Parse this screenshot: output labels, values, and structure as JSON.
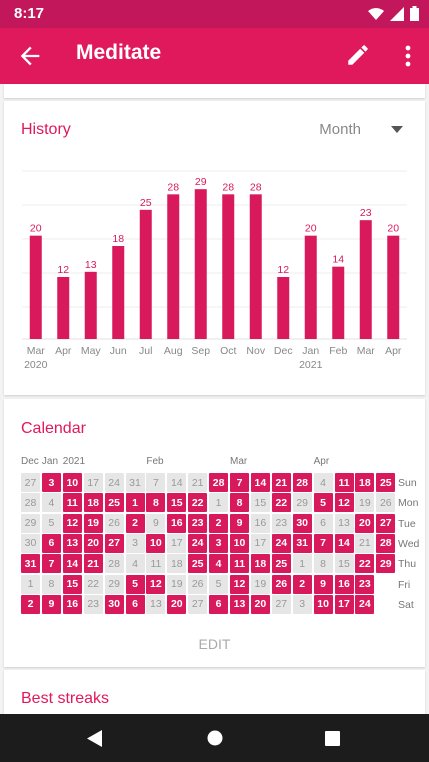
{
  "status": {
    "time": "8:17"
  },
  "app": {
    "title": "Meditate"
  },
  "history": {
    "title": "History",
    "period": "Month"
  },
  "chart_data": {
    "type": "bar",
    "categories": [
      "Mar\n2020",
      "Apr",
      "May",
      "Jun",
      "Jul",
      "Aug",
      "Sep",
      "Oct",
      "Nov",
      "Dec",
      "Jan\n2021",
      "Feb",
      "Mar",
      "Apr"
    ],
    "values": [
      20,
      12,
      13,
      18,
      25,
      28,
      29,
      28,
      28,
      12,
      20,
      14,
      23,
      20
    ],
    "ylim": [
      0,
      30
    ],
    "grid": true,
    "title": "",
    "xlabel": "",
    "ylabel": ""
  },
  "calendar": {
    "title": "Calendar",
    "month_labels": [
      {
        "col": 0,
        "text": "Dec"
      },
      {
        "col": 1,
        "text": "Jan"
      },
      {
        "col": 2,
        "text": "2021"
      },
      {
        "col": 6,
        "text": "Feb"
      },
      {
        "col": 10,
        "text": "Mar"
      },
      {
        "col": 14,
        "text": "Apr"
      }
    ],
    "weekdays": [
      "Sun",
      "Mon",
      "Tue",
      "Wed",
      "Thu",
      "Fri",
      "Sat"
    ],
    "columns": [
      [
        [
          27,
          0
        ],
        [
          28,
          0
        ],
        [
          29,
          0
        ],
        [
          30,
          0
        ],
        [
          31,
          1
        ],
        [
          1,
          0
        ],
        [
          2,
          1
        ]
      ],
      [
        [
          3,
          1
        ],
        [
          4,
          0
        ],
        [
          5,
          0
        ],
        [
          6,
          1
        ],
        [
          7,
          1
        ],
        [
          8,
          0
        ],
        [
          9,
          1
        ]
      ],
      [
        [
          10,
          1
        ],
        [
          11,
          1
        ],
        [
          12,
          1
        ],
        [
          13,
          1
        ],
        [
          14,
          1
        ],
        [
          15,
          1
        ],
        [
          16,
          1
        ]
      ],
      [
        [
          17,
          0
        ],
        [
          18,
          1
        ],
        [
          19,
          1
        ],
        [
          20,
          1
        ],
        [
          21,
          1
        ],
        [
          22,
          0
        ],
        [
          23,
          0
        ]
      ],
      [
        [
          24,
          0
        ],
        [
          25,
          1
        ],
        [
          26,
          0
        ],
        [
          27,
          1
        ],
        [
          28,
          0
        ],
        [
          29,
          0
        ],
        [
          30,
          1
        ]
      ],
      [
        [
          31,
          0
        ],
        [
          1,
          1
        ],
        [
          2,
          1
        ],
        [
          3,
          0
        ],
        [
          4,
          0
        ],
        [
          5,
          1
        ],
        [
          6,
          1
        ]
      ],
      [
        [
          7,
          0
        ],
        [
          8,
          1
        ],
        [
          9,
          0
        ],
        [
          10,
          1
        ],
        [
          11,
          0
        ],
        [
          12,
          1
        ],
        [
          13,
          0
        ]
      ],
      [
        [
          14,
          0
        ],
        [
          15,
          1
        ],
        [
          16,
          1
        ],
        [
          17,
          0
        ],
        [
          18,
          0
        ],
        [
          19,
          0
        ],
        [
          20,
          1
        ]
      ],
      [
        [
          21,
          0
        ],
        [
          22,
          1
        ],
        [
          23,
          1
        ],
        [
          24,
          1
        ],
        [
          25,
          1
        ],
        [
          26,
          0
        ],
        [
          27,
          0
        ]
      ],
      [
        [
          28,
          1
        ],
        [
          1,
          0
        ],
        [
          2,
          1
        ],
        [
          3,
          1
        ],
        [
          4,
          1
        ],
        [
          5,
          0
        ],
        [
          6,
          1
        ]
      ],
      [
        [
          7,
          1
        ],
        [
          8,
          1
        ],
        [
          9,
          1
        ],
        [
          10,
          1
        ],
        [
          11,
          1
        ],
        [
          12,
          1
        ],
        [
          13,
          1
        ]
      ],
      [
        [
          14,
          1
        ],
        [
          15,
          0
        ],
        [
          16,
          0
        ],
        [
          17,
          0
        ],
        [
          18,
          1
        ],
        [
          19,
          0
        ],
        [
          20,
          1
        ]
      ],
      [
        [
          21,
          1
        ],
        [
          22,
          1
        ],
        [
          23,
          0
        ],
        [
          24,
          1
        ],
        [
          25,
          1
        ],
        [
          26,
          1
        ],
        [
          27,
          0
        ]
      ],
      [
        [
          28,
          1
        ],
        [
          29,
          0
        ],
        [
          30,
          1
        ],
        [
          31,
          1
        ],
        [
          1,
          0
        ],
        [
          2,
          1
        ],
        [
          3,
          0
        ]
      ],
      [
        [
          4,
          0
        ],
        [
          5,
          1
        ],
        [
          6,
          0
        ],
        [
          7,
          1
        ],
        [
          8,
          0
        ],
        [
          9,
          1
        ],
        [
          10,
          1
        ]
      ],
      [
        [
          11,
          1
        ],
        [
          12,
          1
        ],
        [
          13,
          0
        ],
        [
          14,
          1
        ],
        [
          15,
          0
        ],
        [
          16,
          1
        ],
        [
          17,
          1
        ]
      ],
      [
        [
          18,
          1
        ],
        [
          19,
          0
        ],
        [
          20,
          1
        ],
        [
          21,
          0
        ],
        [
          22,
          1
        ],
        [
          23,
          1
        ],
        [
          24,
          1
        ]
      ],
      [
        [
          25,
          1
        ],
        [
          26,
          0
        ],
        [
          27,
          1
        ],
        [
          28,
          1
        ],
        [
          29,
          1
        ],
        null,
        null
      ]
    ],
    "edit_label": "EDIT"
  },
  "streaks": {
    "title": "Best streaks"
  },
  "colors": {
    "accent": "#d81a5c",
    "appbar": "#e0185c",
    "statusbar": "#c2185b"
  },
  "icons": {
    "back": "arrow-left-icon",
    "edit": "pencil-icon",
    "more": "more-vert-icon"
  }
}
